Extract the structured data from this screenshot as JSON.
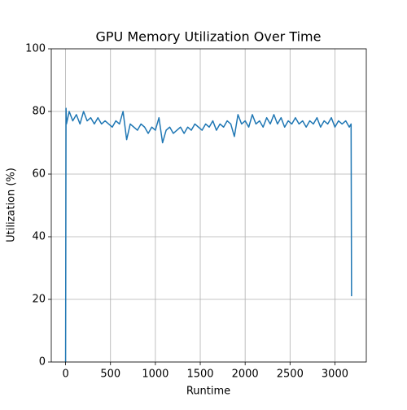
{
  "chart_data": {
    "type": "line",
    "title": "GPU Memory Utilization Over Time",
    "xlabel": "Runtime",
    "ylabel": "Utilization (%)",
    "x": [
      0,
      5,
      10,
      40,
      80,
      120,
      160,
      200,
      240,
      280,
      320,
      360,
      400,
      440,
      480,
      520,
      560,
      600,
      640,
      680,
      720,
      760,
      800,
      840,
      880,
      920,
      960,
      1000,
      1040,
      1080,
      1120,
      1160,
      1200,
      1240,
      1280,
      1320,
      1360,
      1400,
      1440,
      1480,
      1520,
      1560,
      1600,
      1640,
      1680,
      1720,
      1760,
      1800,
      1840,
      1880,
      1920,
      1960,
      2000,
      2040,
      2080,
      2120,
      2160,
      2200,
      2240,
      2280,
      2320,
      2360,
      2400,
      2440,
      2480,
      2520,
      2560,
      2600,
      2640,
      2680,
      2720,
      2760,
      2800,
      2840,
      2880,
      2920,
      2960,
      3000,
      3040,
      3080,
      3120,
      3160,
      3180,
      3185
    ],
    "series": [
      {
        "name": "GPU Memory Utilization",
        "color": "#1f77b4",
        "values": [
          0,
          81,
          76,
          80,
          77,
          79,
          76,
          80,
          77,
          78,
          76,
          78,
          76,
          77,
          76,
          75,
          77,
          76,
          80,
          71,
          76,
          75,
          74,
          76,
          75,
          73,
          75,
          74,
          78,
          70,
          74,
          75,
          73,
          74,
          75,
          73,
          75,
          74,
          76,
          75,
          74,
          76,
          75,
          77,
          74,
          76,
          75,
          77,
          76,
          72,
          79,
          76,
          77,
          75,
          79,
          76,
          77,
          75,
          78,
          76,
          79,
          76,
          78,
          75,
          77,
          76,
          78,
          76,
          77,
          75,
          77,
          76,
          78,
          75,
          77,
          76,
          78,
          75,
          77,
          76,
          77,
          75,
          76,
          21
        ]
      }
    ],
    "xlim": [
      -159.5,
      3349.5
    ],
    "ylim": [
      0,
      100
    ],
    "xticks": [
      0,
      500,
      1000,
      1500,
      2000,
      2500,
      3000
    ],
    "yticks": [
      0,
      20,
      40,
      60,
      80,
      100
    ],
    "grid": true
  }
}
